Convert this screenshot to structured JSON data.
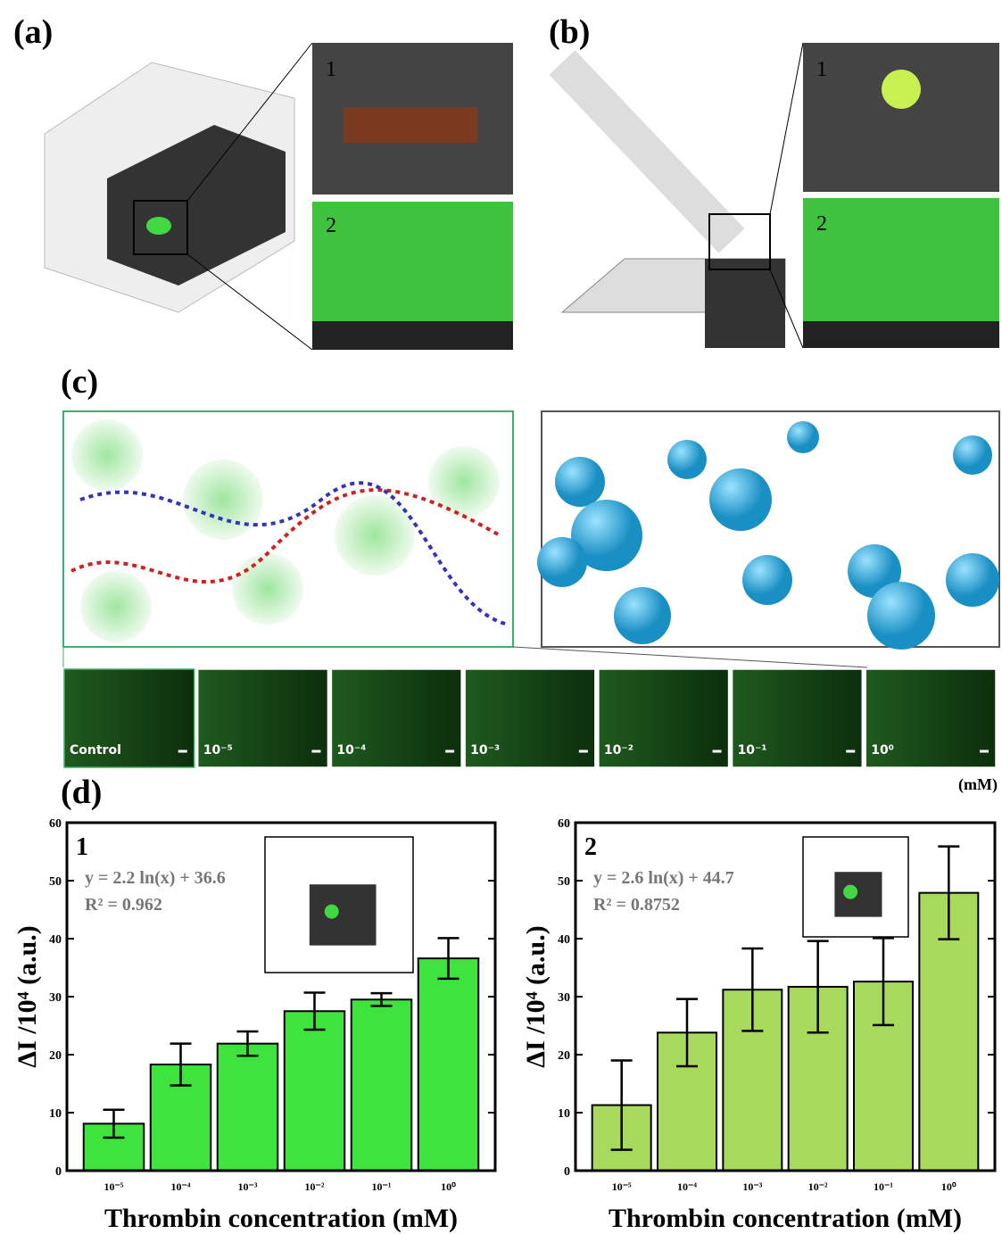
{
  "panels": {
    "a": {
      "label": "(a)",
      "inset_1": "1",
      "inset_2": "2"
    },
    "b": {
      "label": "(b)",
      "inset_1": "1",
      "inset_2": "2"
    },
    "c": {
      "label": "(c)",
      "strip_labels": [
        "Control",
        "10⁻⁵",
        "10⁻⁴",
        "10⁻³",
        "10⁻²",
        "10⁻¹",
        "10⁰"
      ],
      "unit": "(mM)"
    },
    "d": {
      "label": "(d)"
    }
  },
  "chart_data": [
    {
      "type": "bar",
      "label": "1",
      "equation": "y = 2.2 ln(x) + 36.6",
      "r_squared": "R² = 0.962",
      "x_label": "Thrombin concentration (mM)",
      "y_label": "ΔI /10⁴ (a.u.)",
      "categories": [
        "10⁻⁵",
        "10⁻⁴",
        "10⁻³",
        "10⁻²",
        "10⁻¹",
        "10⁰"
      ],
      "values": [
        8.1,
        18.3,
        21.9,
        27.5,
        29.5,
        36.6
      ],
      "errors": [
        2.4,
        3.6,
        2.1,
        3.2,
        1.1,
        3.5
      ],
      "color": "#3ee33e",
      "ylim": [
        0,
        60
      ],
      "yticks": [
        0,
        10,
        20,
        30,
        40,
        50,
        60
      ]
    },
    {
      "type": "bar",
      "label": "2",
      "equation": "y = 2.6 ln(x) + 44.7",
      "r_squared": "R² = 0.8752",
      "x_label": "Thrombin concentration (mM)",
      "y_label": "ΔI /10⁴ (a.u.)",
      "categories": [
        "10⁻⁵",
        "10⁻⁴",
        "10⁻³",
        "10⁻²",
        "10⁻¹",
        "10⁰"
      ],
      "values": [
        11.3,
        23.8,
        31.2,
        31.7,
        32.6,
        47.9
      ],
      "errors": [
        7.7,
        5.8,
        7.1,
        7.9,
        7.5,
        8.0
      ],
      "color": "#a6d95c",
      "ylim": [
        0,
        60
      ],
      "yticks": [
        0,
        10,
        20,
        30,
        40,
        50,
        60
      ]
    }
  ]
}
